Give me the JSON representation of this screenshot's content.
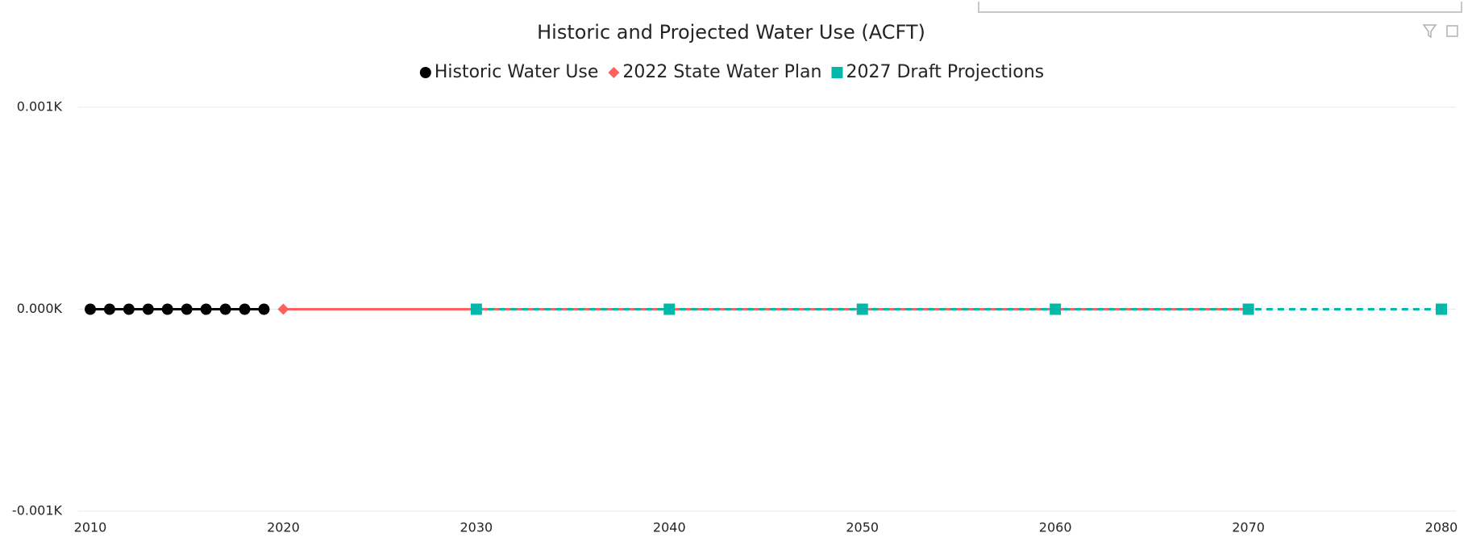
{
  "chart_data": {
    "type": "line",
    "title": "Historic and Projected Water Use (ACFT)",
    "series": [
      {
        "name": "Historic Water Use",
        "color": "#000000",
        "marker": "circle",
        "dashed": false,
        "x": [
          2010,
          2011,
          2012,
          2013,
          2014,
          2015,
          2016,
          2017,
          2018,
          2019
        ],
        "values": [
          0,
          0,
          0,
          0,
          0,
          0,
          0,
          0,
          0,
          0
        ]
      },
      {
        "name": "2022 State Water Plan",
        "color": "#fd625e",
        "marker": "diamond",
        "dashed": false,
        "x": [
          2020,
          2030,
          2040,
          2050,
          2060,
          2070
        ],
        "values": [
          0,
          0,
          0,
          0,
          0,
          0
        ]
      },
      {
        "name": "2027 Draft Projections",
        "color": "#01b8aa",
        "marker": "square",
        "dashed": true,
        "x": [
          2030,
          2040,
          2050,
          2060,
          2070,
          2080
        ],
        "values": [
          0,
          0,
          0,
          0,
          0,
          0
        ]
      }
    ],
    "xlim": [
      2010,
      2080
    ],
    "xticks": [
      2010,
      2020,
      2030,
      2040,
      2050,
      2060,
      2070,
      2080
    ],
    "ylim": [
      -1,
      1
    ],
    "yticks": [
      {
        "value": -1,
        "label": "-0.001K"
      },
      {
        "value": 0,
        "label": "0.000K"
      },
      {
        "value": 1,
        "label": "0.001K"
      }
    ],
    "grid": true
  }
}
